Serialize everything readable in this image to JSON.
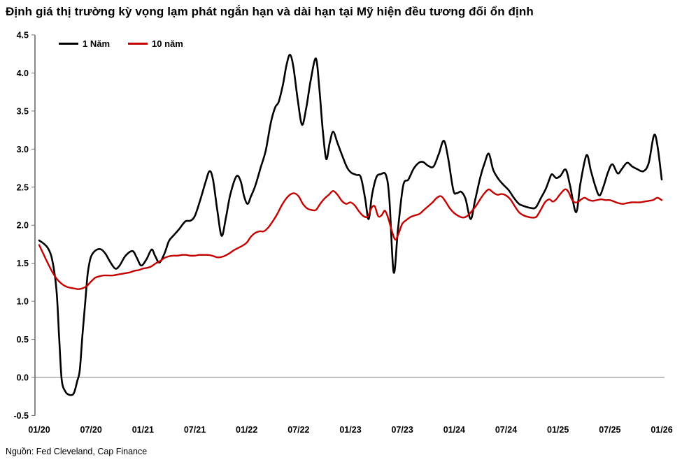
{
  "title": "Định giá thị trường kỳ vọng lạm phát ngắn hạn và dài hạn tại Mỹ hiện đều tương đối ổn định",
  "source": "Nguồn: Fed Cleveland, Cap Finance",
  "legend": {
    "series1_label": "1 Năm",
    "series2_label": "10 năm"
  },
  "colors": {
    "series1": "#000000",
    "series2": "#c40000",
    "axis": "#3a3a3a",
    "zero_line": "#808080",
    "tick": "#777777",
    "text": "#000000"
  },
  "chart_data": {
    "type": "line",
    "title": "Định giá thị trường kỳ vọng lạm phát ngắn hạn và dài hạn tại Mỹ hiện đều tương đối ổn định",
    "xlabel": "",
    "ylabel": "",
    "ylim": [
      -0.5,
      4.5
    ],
    "y_ticks": [
      4.5,
      4.0,
      3.5,
      3.0,
      2.5,
      2.0,
      1.5,
      1.0,
      0.5,
      0.0,
      -0.5
    ],
    "x_tick_months": [
      0,
      6,
      12,
      18,
      24,
      30,
      36,
      42,
      48,
      54,
      60,
      66,
      72
    ],
    "x_tick_labels": [
      "01/20",
      "07/20",
      "01/21",
      "07/21",
      "01/22",
      "07/22",
      "01/23",
      "07/23",
      "01/24",
      "07/24",
      "01/25",
      "07/25",
      "01/26"
    ],
    "x_range_months": [
      0,
      72
    ],
    "grid": false,
    "zero_line": true,
    "legend_position": "top-left",
    "series": [
      {
        "name": "1 Năm",
        "color": "#000000",
        "points": [
          [
            0,
            1.8
          ],
          [
            0.5,
            1.76
          ],
          [
            1,
            1.7
          ],
          [
            1.5,
            1.55
          ],
          [
            2,
            1.15
          ],
          [
            2.3,
            0.55
          ],
          [
            2.6,
            -0.02
          ],
          [
            3,
            -0.18
          ],
          [
            3.5,
            -0.23
          ],
          [
            4,
            -0.21
          ],
          [
            4.4,
            -0.05
          ],
          [
            4.7,
            0.1
          ],
          [
            5,
            0.55
          ],
          [
            5.3,
            0.95
          ],
          [
            5.6,
            1.35
          ],
          [
            5.9,
            1.55
          ],
          [
            6.2,
            1.63
          ],
          [
            6.7,
            1.68
          ],
          [
            7.2,
            1.68
          ],
          [
            7.7,
            1.62
          ],
          [
            8.2,
            1.52
          ],
          [
            8.8,
            1.43
          ],
          [
            9.3,
            1.47
          ],
          [
            10,
            1.6
          ],
          [
            10.8,
            1.66
          ],
          [
            11.3,
            1.57
          ],
          [
            11.8,
            1.47
          ],
          [
            12.4,
            1.55
          ],
          [
            13,
            1.68
          ],
          [
            13.4,
            1.6
          ],
          [
            13.9,
            1.51
          ],
          [
            14.5,
            1.63
          ],
          [
            15,
            1.79
          ],
          [
            15.5,
            1.86
          ],
          [
            16.2,
            1.95
          ],
          [
            16.9,
            2.05
          ],
          [
            17.5,
            2.06
          ],
          [
            18,
            2.12
          ],
          [
            18.6,
            2.32
          ],
          [
            19.2,
            2.55
          ],
          [
            19.7,
            2.71
          ],
          [
            20.1,
            2.6
          ],
          [
            20.6,
            2.2
          ],
          [
            21.1,
            1.86
          ],
          [
            21.6,
            2.1
          ],
          [
            22.1,
            2.4
          ],
          [
            22.8,
            2.64
          ],
          [
            23.3,
            2.58
          ],
          [
            23.7,
            2.38
          ],
          [
            24.1,
            2.28
          ],
          [
            24.5,
            2.38
          ],
          [
            25,
            2.52
          ],
          [
            25.6,
            2.75
          ],
          [
            26.2,
            2.98
          ],
          [
            26.8,
            3.35
          ],
          [
            27.3,
            3.55
          ],
          [
            27.7,
            3.62
          ],
          [
            28.2,
            3.85
          ],
          [
            28.6,
            4.1
          ],
          [
            29,
            4.24
          ],
          [
            29.4,
            4.08
          ],
          [
            29.9,
            3.65
          ],
          [
            30.4,
            3.32
          ],
          [
            30.9,
            3.55
          ],
          [
            31.4,
            3.9
          ],
          [
            32,
            4.19
          ],
          [
            32.4,
            3.8
          ],
          [
            32.8,
            3.25
          ],
          [
            33.2,
            2.87
          ],
          [
            33.6,
            3.08
          ],
          [
            34,
            3.23
          ],
          [
            34.5,
            3.08
          ],
          [
            35,
            2.93
          ],
          [
            35.6,
            2.76
          ],
          [
            36.1,
            2.69
          ],
          [
            36.7,
            2.66
          ],
          [
            37.2,
            2.63
          ],
          [
            37.7,
            2.35
          ],
          [
            38.1,
            2.08
          ],
          [
            38.5,
            2.4
          ],
          [
            39,
            2.63
          ],
          [
            39.5,
            2.67
          ],
          [
            40.1,
            2.66
          ],
          [
            40.5,
            2.35
          ],
          [
            41,
            1.38
          ],
          [
            41.5,
            1.95
          ],
          [
            42.1,
            2.52
          ],
          [
            42.7,
            2.6
          ],
          [
            43.3,
            2.74
          ],
          [
            43.9,
            2.82
          ],
          [
            44.4,
            2.83
          ],
          [
            45,
            2.78
          ],
          [
            45.6,
            2.77
          ],
          [
            46.2,
            2.93
          ],
          [
            46.8,
            3.11
          ],
          [
            47.3,
            2.88
          ],
          [
            47.9,
            2.46
          ],
          [
            48.3,
            2.42
          ],
          [
            48.8,
            2.44
          ],
          [
            49.3,
            2.35
          ],
          [
            49.9,
            2.08
          ],
          [
            50.4,
            2.32
          ],
          [
            51,
            2.62
          ],
          [
            51.5,
            2.81
          ],
          [
            52,
            2.94
          ],
          [
            52.5,
            2.73
          ],
          [
            53.1,
            2.61
          ],
          [
            53.7,
            2.53
          ],
          [
            54.3,
            2.46
          ],
          [
            54.9,
            2.36
          ],
          [
            55.5,
            2.28
          ],
          [
            56.1,
            2.25
          ],
          [
            56.7,
            2.23
          ],
          [
            57.4,
            2.23
          ],
          [
            58,
            2.35
          ],
          [
            58.6,
            2.48
          ],
          [
            59,
            2.6
          ],
          [
            59.3,
            2.67
          ],
          [
            59.8,
            2.62
          ],
          [
            60.3,
            2.65
          ],
          [
            60.9,
            2.73
          ],
          [
            61.4,
            2.52
          ],
          [
            62.1,
            2.17
          ],
          [
            62.6,
            2.55
          ],
          [
            63.3,
            2.92
          ],
          [
            63.8,
            2.72
          ],
          [
            64.3,
            2.52
          ],
          [
            64.8,
            2.39
          ],
          [
            65.3,
            2.52
          ],
          [
            65.8,
            2.7
          ],
          [
            66.3,
            2.8
          ],
          [
            66.9,
            2.68
          ],
          [
            67.4,
            2.74
          ],
          [
            68,
            2.82
          ],
          [
            68.6,
            2.77
          ],
          [
            69.1,
            2.74
          ],
          [
            69.9,
            2.71
          ],
          [
            70.5,
            2.82
          ],
          [
            71.1,
            3.18
          ],
          [
            71.5,
            3.05
          ],
          [
            72,
            2.6
          ]
        ]
      },
      {
        "name": "10 năm",
        "color": "#c40000",
        "points": [
          [
            0,
            1.74
          ],
          [
            0.5,
            1.62
          ],
          [
            1,
            1.5
          ],
          [
            1.5,
            1.39
          ],
          [
            2,
            1.3
          ],
          [
            2.5,
            1.24
          ],
          [
            3,
            1.2
          ],
          [
            3.5,
            1.18
          ],
          [
            4,
            1.17
          ],
          [
            4.5,
            1.16
          ],
          [
            5,
            1.17
          ],
          [
            5.5,
            1.2
          ],
          [
            6,
            1.26
          ],
          [
            6.5,
            1.31
          ],
          [
            7,
            1.33
          ],
          [
            7.5,
            1.34
          ],
          [
            8,
            1.34
          ],
          [
            8.5,
            1.34
          ],
          [
            9,
            1.35
          ],
          [
            9.5,
            1.36
          ],
          [
            10,
            1.37
          ],
          [
            10.5,
            1.38
          ],
          [
            11,
            1.4
          ],
          [
            11.5,
            1.41
          ],
          [
            12,
            1.43
          ],
          [
            12.5,
            1.44
          ],
          [
            13,
            1.46
          ],
          [
            13.5,
            1.5
          ],
          [
            14,
            1.53
          ],
          [
            14.5,
            1.57
          ],
          [
            15,
            1.59
          ],
          [
            15.5,
            1.6
          ],
          [
            16,
            1.6
          ],
          [
            16.5,
            1.61
          ],
          [
            17,
            1.61
          ],
          [
            17.5,
            1.6
          ],
          [
            18,
            1.6
          ],
          [
            18.5,
            1.61
          ],
          [
            19,
            1.61
          ],
          [
            19.5,
            1.61
          ],
          [
            20,
            1.6
          ],
          [
            20.5,
            1.58
          ],
          [
            21,
            1.58
          ],
          [
            21.5,
            1.6
          ],
          [
            22,
            1.63
          ],
          [
            22.5,
            1.67
          ],
          [
            23,
            1.7
          ],
          [
            23.5,
            1.73
          ],
          [
            24,
            1.77
          ],
          [
            24.5,
            1.85
          ],
          [
            25,
            1.9
          ],
          [
            25.5,
            1.92
          ],
          [
            26,
            1.92
          ],
          [
            26.5,
            1.97
          ],
          [
            27,
            2.05
          ],
          [
            27.5,
            2.14
          ],
          [
            28,
            2.25
          ],
          [
            28.5,
            2.34
          ],
          [
            29,
            2.4
          ],
          [
            29.5,
            2.42
          ],
          [
            30,
            2.38
          ],
          [
            30.5,
            2.28
          ],
          [
            31,
            2.22
          ],
          [
            31.5,
            2.2
          ],
          [
            32,
            2.2
          ],
          [
            32.5,
            2.28
          ],
          [
            33,
            2.35
          ],
          [
            33.5,
            2.4
          ],
          [
            34,
            2.45
          ],
          [
            34.5,
            2.4
          ],
          [
            35,
            2.32
          ],
          [
            35.5,
            2.28
          ],
          [
            36,
            2.3
          ],
          [
            36.5,
            2.26
          ],
          [
            37,
            2.18
          ],
          [
            37.5,
            2.12
          ],
          [
            38,
            2.11
          ],
          [
            38.4,
            2.22
          ],
          [
            38.8,
            2.25
          ],
          [
            39.2,
            2.12
          ],
          [
            39.6,
            2.13
          ],
          [
            40,
            2.19
          ],
          [
            40.4,
            2.08
          ],
          [
            40.8,
            1.92
          ],
          [
            41.2,
            1.81
          ],
          [
            41.6,
            1.9
          ],
          [
            42,
            2.02
          ],
          [
            42.5,
            2.07
          ],
          [
            43,
            2.11
          ],
          [
            43.5,
            2.13
          ],
          [
            44,
            2.15
          ],
          [
            44.5,
            2.2
          ],
          [
            45,
            2.25
          ],
          [
            45.5,
            2.3
          ],
          [
            46,
            2.36
          ],
          [
            46.5,
            2.38
          ],
          [
            47,
            2.31
          ],
          [
            47.5,
            2.22
          ],
          [
            48,
            2.16
          ],
          [
            48.5,
            2.12
          ],
          [
            49,
            2.1
          ],
          [
            49.5,
            2.12
          ],
          [
            50,
            2.18
          ],
          [
            50.5,
            2.25
          ],
          [
            51,
            2.34
          ],
          [
            51.5,
            2.42
          ],
          [
            52,
            2.47
          ],
          [
            52.5,
            2.43
          ],
          [
            53,
            2.4
          ],
          [
            53.5,
            2.41
          ],
          [
            54,
            2.39
          ],
          [
            54.5,
            2.34
          ],
          [
            55,
            2.25
          ],
          [
            55.5,
            2.17
          ],
          [
            56,
            2.13
          ],
          [
            56.5,
            2.11
          ],
          [
            57,
            2.1
          ],
          [
            57.5,
            2.11
          ],
          [
            58,
            2.2
          ],
          [
            58.5,
            2.3
          ],
          [
            59,
            2.34
          ],
          [
            59.4,
            2.31
          ],
          [
            59.8,
            2.34
          ],
          [
            60.2,
            2.4
          ],
          [
            60.8,
            2.47
          ],
          [
            61.2,
            2.44
          ],
          [
            61.7,
            2.32
          ],
          [
            62.2,
            2.3
          ],
          [
            62.7,
            2.34
          ],
          [
            63.1,
            2.36
          ],
          [
            63.6,
            2.33
          ],
          [
            64,
            2.32
          ],
          [
            64.5,
            2.33
          ],
          [
            65,
            2.34
          ],
          [
            65.5,
            2.33
          ],
          [
            66,
            2.33
          ],
          [
            66.5,
            2.31
          ],
          [
            67,
            2.29
          ],
          [
            67.5,
            2.28
          ],
          [
            68,
            2.29
          ],
          [
            68.5,
            2.3
          ],
          [
            69,
            2.3
          ],
          [
            69.5,
            2.3
          ],
          [
            70,
            2.31
          ],
          [
            70.5,
            2.32
          ],
          [
            71,
            2.33
          ],
          [
            71.5,
            2.36
          ],
          [
            72,
            2.33
          ]
        ]
      }
    ]
  }
}
